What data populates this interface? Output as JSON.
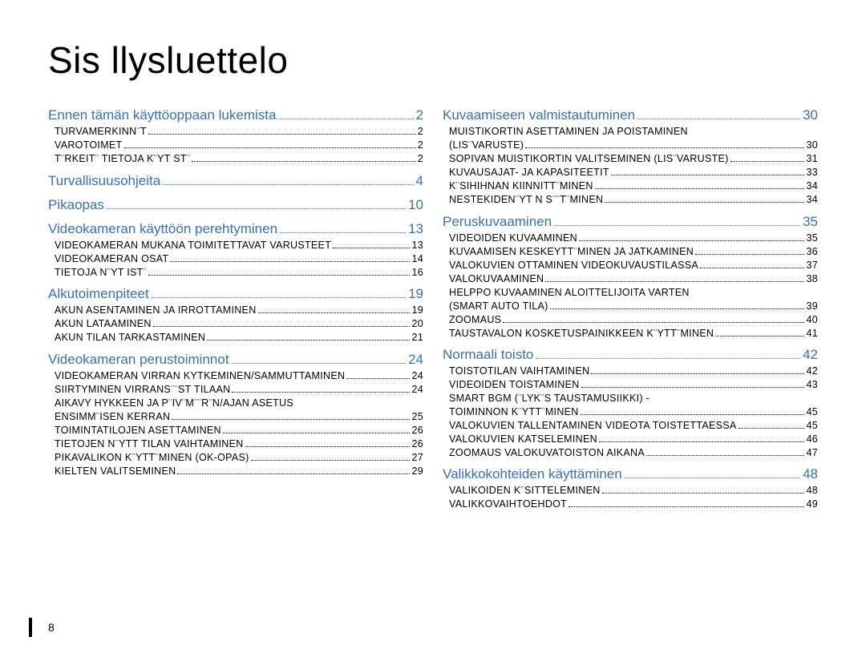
{
  "title": "Sis llysluettelo",
  "pageNumber": "8",
  "columns": [
    {
      "items": [
        {
          "type": "section",
          "label": "Ennen tämän käyttöoppaan lukemista",
          "pg": "2"
        },
        {
          "type": "sub",
          "label": "TURVAMERKINN¨T",
          "pg": "2"
        },
        {
          "type": "sub",
          "label": "VAROTOIMET",
          "pg": "2"
        },
        {
          "type": "sub",
          "label": "T¨RKEIT¨ TIETOJA K¨YT ST¨",
          "pg": "2"
        },
        {
          "type": "section",
          "label": "Turvallisuusohjeita",
          "pg": "4"
        },
        {
          "type": "section",
          "label": "Pikaopas",
          "pg": "10"
        },
        {
          "type": "section",
          "label": "Videokameran käyttöön perehtyminen",
          "pg": "13"
        },
        {
          "type": "sub",
          "label": "VIDEOKAMERAN MUKANA TOIMITETTAVAT VARUSTEET",
          "pg": "13"
        },
        {
          "type": "sub",
          "label": "VIDEOKAMERAN OSAT",
          "pg": "14"
        },
        {
          "type": "sub",
          "label": "TIETOJA N¨YT IST¨",
          "pg": "16"
        },
        {
          "type": "section",
          "label": "Alkutoimenpiteet",
          "pg": "19"
        },
        {
          "type": "sub",
          "label": "AKUN ASENTAMINEN JA IRROTTAMINEN",
          "pg": "19"
        },
        {
          "type": "sub",
          "label": "AKUN LATAAMINEN",
          "pg": "20"
        },
        {
          "type": "sub",
          "label": "AKUN TILAN TARKASTAMINEN",
          "pg": "21"
        },
        {
          "type": "section",
          "label": "Videokameran perustoiminnot",
          "pg": "24"
        },
        {
          "type": "sub",
          "label": "VIDEOKAMERAN VIRRAN KYTKEMINEN/SAMMUTTAMINEN",
          "pg": "24"
        },
        {
          "type": "sub",
          "label": "SIIRTYMINEN VIRRANS¨¨ST TILAAN",
          "pg": "24"
        },
        {
          "type": "sub",
          "label": "AIKAVY HYKKEEN JA P¨IV¨M¨¨R¨N/AJAN ASETUS",
          "nonum": true
        },
        {
          "type": "sub",
          "label": "ENSIMM¨ISEN KERRAN",
          "pg": "25"
        },
        {
          "type": "sub",
          "label": "TOIMINTATILOJEN ASETTAMINEN",
          "pg": "26"
        },
        {
          "type": "sub",
          "label": "TIETOJEN N¨YTT TILAN VAIHTAMINEN",
          "pg": "26"
        },
        {
          "type": "sub",
          "label": "PIKAVALIKON K¨YTT¨MINEN (OK-OPAS)",
          "pg": "27"
        },
        {
          "type": "sub",
          "label": "KIELTEN VALITSEMINEN",
          "pg": "29"
        }
      ]
    },
    {
      "items": [
        {
          "type": "section",
          "label": "Kuvaamiseen valmistautuminen",
          "pg": "30"
        },
        {
          "type": "sub",
          "label": "MUISTIKORTIN ASETTAMINEN JA POISTAMINEN",
          "nonum": true
        },
        {
          "type": "sub",
          "label": "(LIS¨VARUSTE)",
          "pg": "30"
        },
        {
          "type": "sub",
          "label": "SOPIVAN MUISTIKORTIN VALITSEMINEN (LIS¨VARUSTE)",
          "pg": "31"
        },
        {
          "type": "sub",
          "label": "KUVAUSAJAT- JA KAPASITEETIT",
          "pg": "33"
        },
        {
          "type": "sub",
          "label": "K¨SIHIHNAN KIINNITT¨MINEN",
          "pg": "34"
        },
        {
          "type": "sub",
          "label": "NESTEKIDEN¨YT N S¨¨T¨MINEN",
          "pg": "34"
        },
        {
          "type": "section",
          "label": "Peruskuvaaminen",
          "pg": "35"
        },
        {
          "type": "sub",
          "label": "VIDEOIDEN KUVAAMINEN",
          "pg": "35"
        },
        {
          "type": "sub",
          "label": "KUVAAMISEN KESKEYTT¨MINEN JA JATKAMINEN",
          "pg": "36"
        },
        {
          "type": "sub",
          "label": "VALOKUVIEN OTTAMINEN VIDEOKUVAUSTILASSA",
          "pg": "37"
        },
        {
          "type": "sub",
          "label": "VALOKUVAAMINEN",
          "pg": "38"
        },
        {
          "type": "sub",
          "label": "HELPPO KUVAAMINEN ALOITTELIJOITA VARTEN",
          "nonum": true
        },
        {
          "type": "sub",
          "label": "(SMART AUTO TILA)",
          "pg": "39"
        },
        {
          "type": "sub",
          "label": "ZOOMAUS",
          "pg": "40"
        },
        {
          "type": "sub",
          "label": "TAUSTAVALON KOSKETUSPAINIKKEEN K¨YTT¨MINEN",
          "pg": "41"
        },
        {
          "type": "section",
          "label": "Normaali toisto",
          "pg": "42"
        },
        {
          "type": "sub",
          "label": "TOISTOTILAN VAIHTAMINEN",
          "pg": "42"
        },
        {
          "type": "sub",
          "label": "VIDEOIDEN TOISTAMINEN",
          "pg": "43"
        },
        {
          "type": "sub",
          "label": "SMART BGM (¨LYK¨S TAUSTAMUSIIKKI) -",
          "nonum": true
        },
        {
          "type": "sub",
          "label": "TOIMINNON K¨YTT¨MINEN",
          "pg": "45"
        },
        {
          "type": "sub",
          "label": "VALOKUVIEN TALLENTAMINEN VIDEOTA TOISTETTAESSA",
          "pg": "45"
        },
        {
          "type": "sub",
          "label": "VALOKUVIEN KATSELEMINEN",
          "pg": "46"
        },
        {
          "type": "sub",
          "label": "ZOOMAUS VALOKUVATOISTON AIKANA",
          "pg": "47"
        },
        {
          "type": "section",
          "label": "Valikkokohteiden käyttäminen",
          "pg": "48"
        },
        {
          "type": "sub",
          "label": "VALIKOIDEN K¨SITTELEMINEN",
          "pg": "48"
        },
        {
          "type": "sub",
          "label": "VALIKKOVAIHTOEHDOT",
          "pg": "49"
        }
      ]
    }
  ]
}
